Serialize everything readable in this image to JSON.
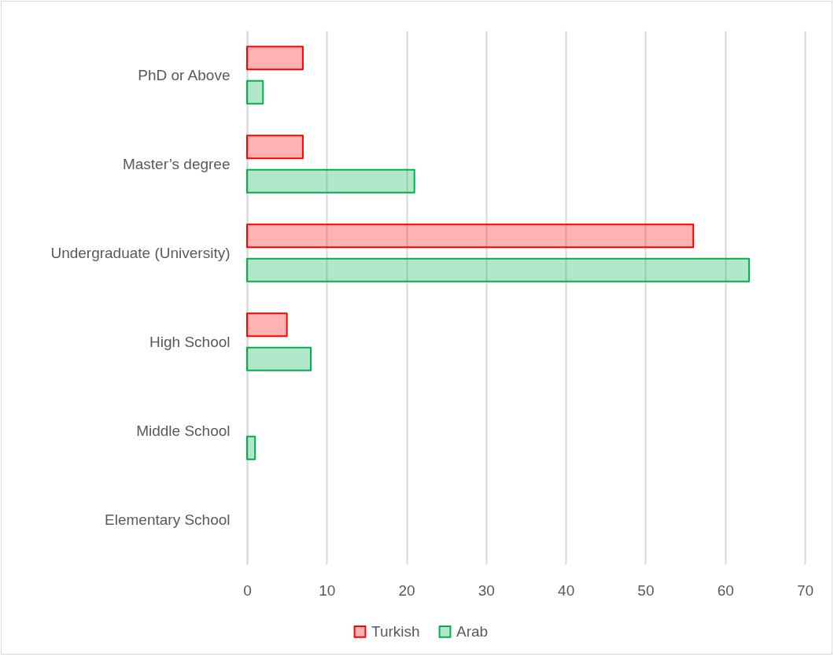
{
  "chart_data": {
    "type": "bar",
    "orientation": "horizontal",
    "categories": [
      "PhD or Above",
      "Master’s degree",
      "Undergraduate (University)",
      "High School",
      "Middle School",
      "Elementary School"
    ],
    "series": [
      {
        "name": "Turkish",
        "color": "#ff0000",
        "values": [
          7,
          7,
          56,
          5,
          0,
          0
        ]
      },
      {
        "name": "Arab",
        "color": "#00b050",
        "values": [
          2,
          21,
          63,
          8,
          1,
          0
        ]
      }
    ],
    "xlim": [
      0,
      70
    ],
    "xticks": [
      0,
      10,
      20,
      30,
      40,
      50,
      60,
      70
    ],
    "grid": "x",
    "legend": "bottom"
  }
}
